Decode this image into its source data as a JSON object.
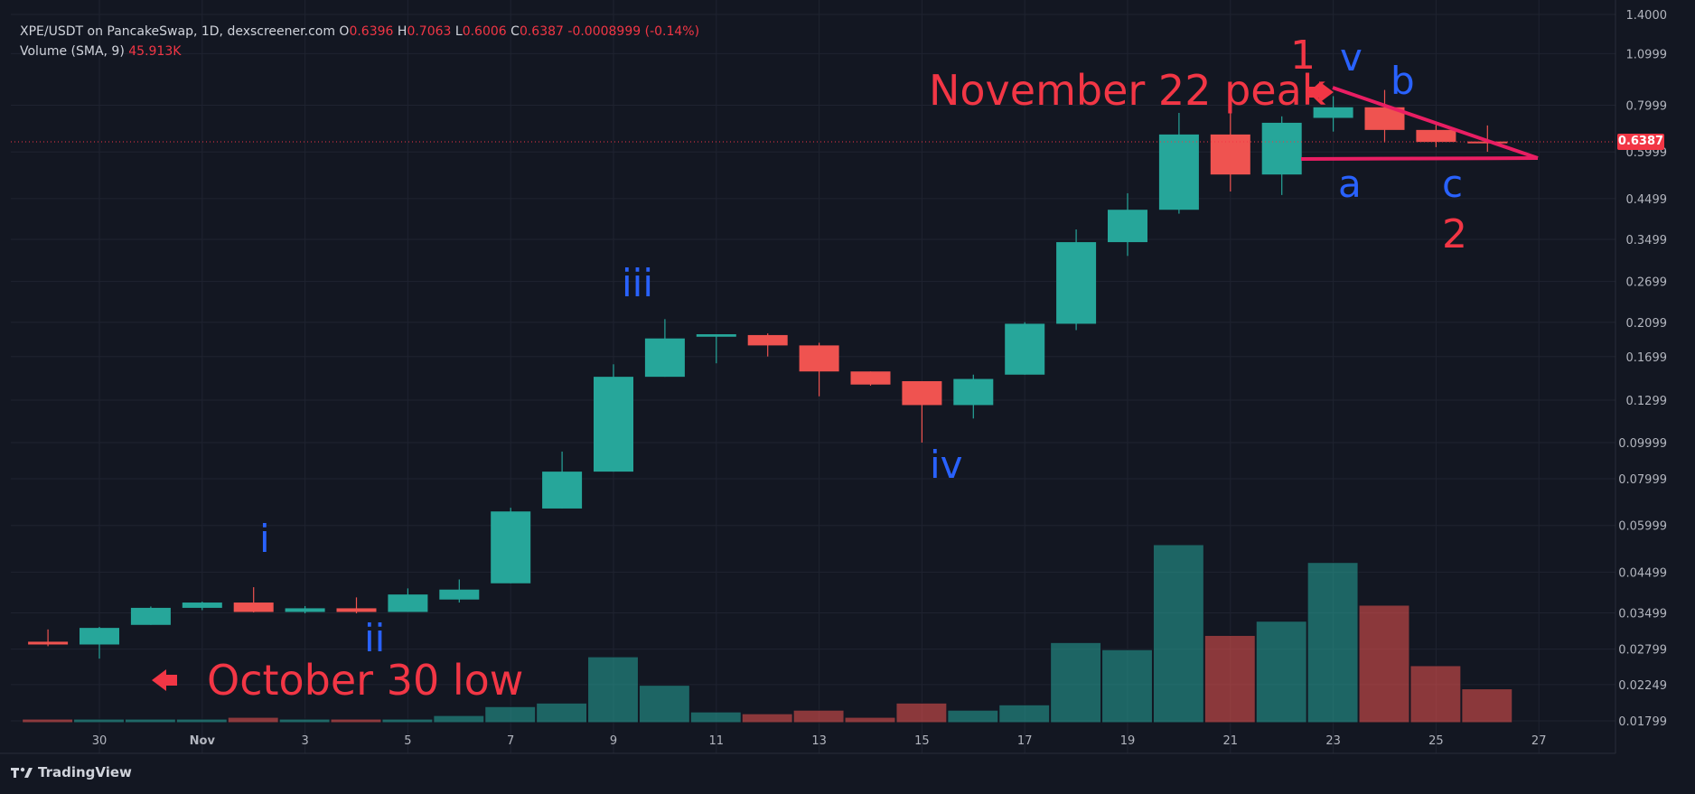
{
  "legend": {
    "pair": "XPE/USDT on PancakeSwap, 1D, dexscreener.com",
    "o_label": "O",
    "o": "0.6396",
    "h_label": "H",
    "h": "0.7063",
    "l_label": "L",
    "l": "0.6006",
    "c_label": "C",
    "c": "0.6387",
    "change": "-0.0008999 (-0.14%)",
    "volume_label": "Volume (SMA, 9)",
    "volume_value": "45.913K"
  },
  "last_price_tag": "0.6387",
  "branding": {
    "name": "TradingView",
    "logo_icon": "tradingview-logo-icon"
  },
  "colors": {
    "background": "#131722",
    "up": "#26a69a",
    "down": "#ef5350",
    "annotation_red": "#f23645",
    "annotation_blue": "#2962ff",
    "trend_line": "#e91e63"
  },
  "annotations": {
    "peak": "November 22 peak",
    "low": "October 30 low",
    "waves": {
      "i": "i",
      "ii": "ii",
      "iii": "iii",
      "iv": "iv",
      "v": "v",
      "a": "a",
      "b": "b",
      "c": "c",
      "one": "1",
      "two": "2"
    }
  },
  "chart_data": {
    "type": "candlestick",
    "y_scale": "log",
    "ylim": [
      0.01799,
      1.4
    ],
    "y_ticks": [
      "1.4000",
      "1.0999",
      "0.7999",
      "0.5999",
      "0.4499",
      "0.3499",
      "0.2699",
      "0.2099",
      "0.1699",
      "0.1299",
      "0.09999",
      "0.07999",
      "0.05999",
      "0.04499",
      "0.03499",
      "0.02799",
      "0.02249",
      "0.01799"
    ],
    "x_ticks": [
      {
        "day": 30,
        "label": "30"
      },
      {
        "day": 32,
        "label": "Nov"
      },
      {
        "day": 34,
        "label": "3"
      },
      {
        "day": 36,
        "label": "5"
      },
      {
        "day": 38,
        "label": "7"
      },
      {
        "day": 40,
        "label": "9"
      },
      {
        "day": 42,
        "label": "11"
      },
      {
        "day": 44,
        "label": "13"
      },
      {
        "day": 46,
        "label": "15"
      },
      {
        "day": 48,
        "label": "17"
      },
      {
        "day": 50,
        "label": "19"
      },
      {
        "day": 52,
        "label": "21"
      },
      {
        "day": 54,
        "label": "23"
      },
      {
        "day": 56,
        "label": "25"
      },
      {
        "day": 58,
        "label": "27"
      }
    ],
    "candles": [
      {
        "day": 29,
        "o": 0.0293,
        "h": 0.0316,
        "l": 0.0285,
        "c": 0.0288
      },
      {
        "day": 30,
        "o": 0.0288,
        "h": 0.0321,
        "l": 0.0264,
        "c": 0.0319
      },
      {
        "day": 31,
        "o": 0.0325,
        "h": 0.0364,
        "l": 0.0325,
        "c": 0.0361
      },
      {
        "day": 32,
        "o": 0.0361,
        "h": 0.0375,
        "l": 0.0356,
        "c": 0.0373
      },
      {
        "day": 33,
        "o": 0.0373,
        "h": 0.041,
        "l": 0.0351,
        "c": 0.0352
      },
      {
        "day": 34,
        "o": 0.0352,
        "h": 0.0365,
        "l": 0.0349,
        "c": 0.036
      },
      {
        "day": 35,
        "o": 0.036,
        "h": 0.0385,
        "l": 0.0349,
        "c": 0.0352
      },
      {
        "day": 36,
        "o": 0.0352,
        "h": 0.0407,
        "l": 0.0352,
        "c": 0.0392
      },
      {
        "day": 37,
        "o": 0.038,
        "h": 0.043,
        "l": 0.0373,
        "c": 0.0404
      },
      {
        "day": 38,
        "o": 0.042,
        "h": 0.0669,
        "l": 0.042,
        "c": 0.0654
      },
      {
        "day": 39,
        "o": 0.0666,
        "h": 0.0946,
        "l": 0.0666,
        "c": 0.0836
      },
      {
        "day": 40,
        "o": 0.0836,
        "h": 0.162,
        "l": 0.0836,
        "c": 0.15
      },
      {
        "day": 41,
        "o": 0.15,
        "h": 0.214,
        "l": 0.15,
        "c": 0.19
      },
      {
        "day": 42,
        "o": 0.192,
        "h": 0.195,
        "l": 0.163,
        "c": 0.195
      },
      {
        "day": 43,
        "o": 0.194,
        "h": 0.196,
        "l": 0.17,
        "c": 0.182
      },
      {
        "day": 44,
        "o": 0.182,
        "h": 0.185,
        "l": 0.133,
        "c": 0.155
      },
      {
        "day": 45,
        "o": 0.155,
        "h": 0.155,
        "l": 0.142,
        "c": 0.143
      },
      {
        "day": 46,
        "o": 0.146,
        "h": 0.146,
        "l": 0.1,
        "c": 0.126
      },
      {
        "day": 47,
        "o": 0.126,
        "h": 0.152,
        "l": 0.116,
        "c": 0.148
      },
      {
        "day": 48,
        "o": 0.152,
        "h": 0.21,
        "l": 0.152,
        "c": 0.208
      },
      {
        "day": 49,
        "o": 0.208,
        "h": 0.372,
        "l": 0.2,
        "c": 0.344
      },
      {
        "day": 50,
        "o": 0.344,
        "h": 0.465,
        "l": 0.316,
        "c": 0.42
      },
      {
        "day": 51,
        "o": 0.42,
        "h": 0.763,
        "l": 0.41,
        "c": 0.668
      },
      {
        "day": 52,
        "o": 0.668,
        "h": 0.77,
        "l": 0.47,
        "c": 0.522
      },
      {
        "day": 53,
        "o": 0.522,
        "h": 0.747,
        "l": 0.46,
        "c": 0.718
      },
      {
        "day": 54,
        "o": 0.74,
        "h": 0.846,
        "l": 0.68,
        "c": 0.79
      },
      {
        "day": 55,
        "o": 0.79,
        "h": 0.879,
        "l": 0.636,
        "c": 0.687
      },
      {
        "day": 56,
        "o": 0.687,
        "h": 0.708,
        "l": 0.618,
        "c": 0.638
      },
      {
        "day": 57,
        "o": 0.6396,
        "h": 0.7063,
        "l": 0.6006,
        "c": 0.6387
      }
    ],
    "volume": [
      {
        "day": 29,
        "v": 0.02,
        "up": false
      },
      {
        "day": 30,
        "v": 0.02,
        "up": true
      },
      {
        "day": 31,
        "v": 0.02,
        "up": true
      },
      {
        "day": 32,
        "v": 0.02,
        "up": true
      },
      {
        "day": 33,
        "v": 0.03,
        "up": false
      },
      {
        "day": 34,
        "v": 0.02,
        "up": true
      },
      {
        "day": 35,
        "v": 0.02,
        "up": false
      },
      {
        "day": 36,
        "v": 0.02,
        "up": true
      },
      {
        "day": 37,
        "v": 0.04,
        "up": true
      },
      {
        "day": 38,
        "v": 0.09,
        "up": true
      },
      {
        "day": 39,
        "v": 0.11,
        "up": true
      },
      {
        "day": 40,
        "v": 0.37,
        "up": true
      },
      {
        "day": 41,
        "v": 0.21,
        "up": true
      },
      {
        "day": 42,
        "v": 0.06,
        "up": true
      },
      {
        "day": 43,
        "v": 0.05,
        "up": false
      },
      {
        "day": 44,
        "v": 0.07,
        "up": false
      },
      {
        "day": 45,
        "v": 0.03,
        "up": false
      },
      {
        "day": 46,
        "v": 0.11,
        "up": false
      },
      {
        "day": 47,
        "v": 0.07,
        "up": true
      },
      {
        "day": 48,
        "v": 0.1,
        "up": true
      },
      {
        "day": 49,
        "v": 0.45,
        "up": true
      },
      {
        "day": 50,
        "v": 0.41,
        "up": true
      },
      {
        "day": 51,
        "v": 1.0,
        "up": true
      },
      {
        "day": 52,
        "v": 0.49,
        "up": false
      },
      {
        "day": 53,
        "v": 0.57,
        "up": true
      },
      {
        "day": 54,
        "v": 0.9,
        "up": true
      },
      {
        "day": 55,
        "v": 0.66,
        "up": false
      },
      {
        "day": 56,
        "v": 0.32,
        "up": false
      },
      {
        "day": 57,
        "v": 0.19,
        "up": false
      }
    ]
  }
}
